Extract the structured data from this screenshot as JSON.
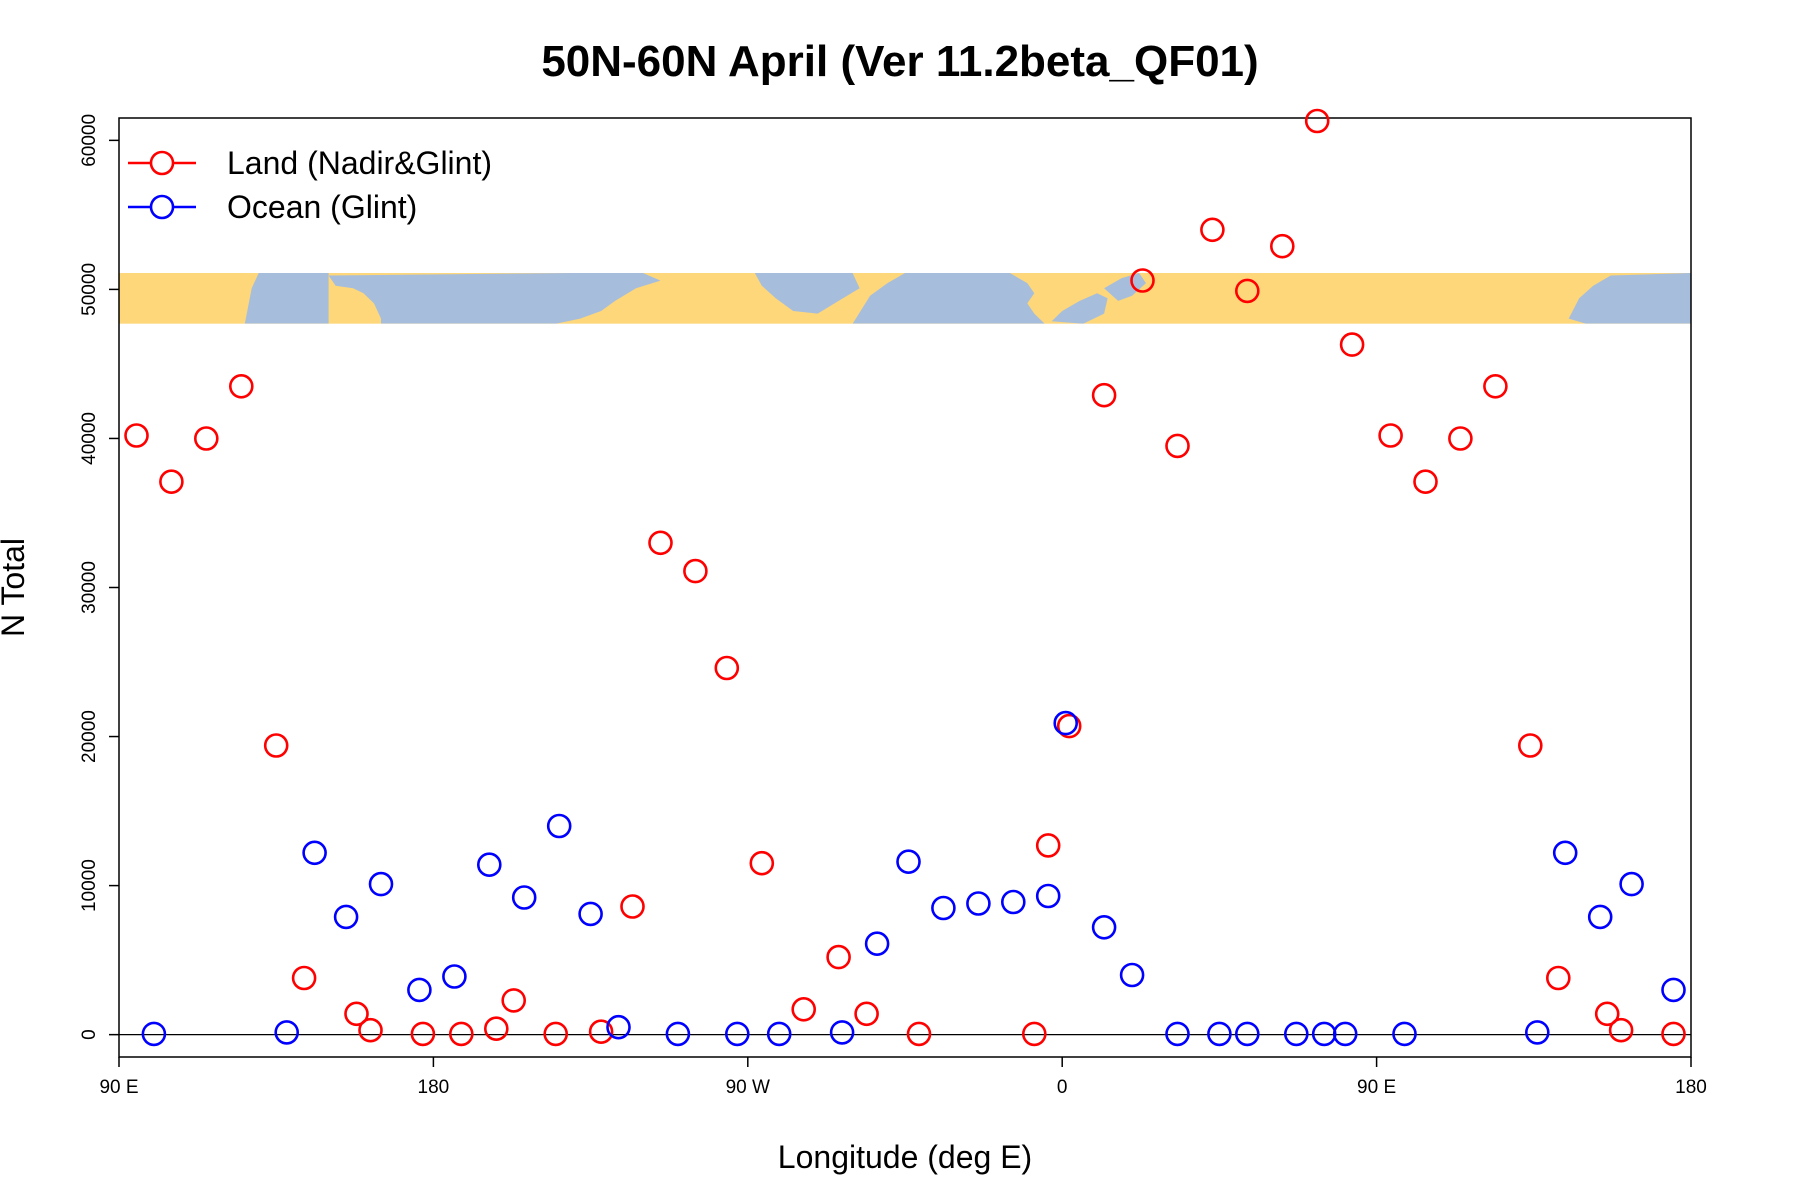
{
  "chart_data": {
    "type": "scatter",
    "title": "50N-60N April (Ver 11.2beta_QF01)",
    "xlabel": "Longitude (deg E)",
    "ylabel": "N Total",
    "xlim": [
      90,
      540
    ],
    "ylim": [
      -1500,
      61500
    ],
    "x_ticks": [
      {
        "value": 90,
        "label": "90 E"
      },
      {
        "value": 180,
        "label": "180"
      },
      {
        "value": 270,
        "label": "90 W"
      },
      {
        "value": 360,
        "label": "0"
      },
      {
        "value": 450,
        "label": "90 E"
      },
      {
        "value": 540,
        "label": "180"
      }
    ],
    "y_ticks": [
      {
        "value": 0,
        "label": "0"
      },
      {
        "value": 10000,
        "label": "10000"
      },
      {
        "value": 20000,
        "label": "20000"
      },
      {
        "value": 30000,
        "label": "30000"
      },
      {
        "value": 40000,
        "label": "40000"
      },
      {
        "value": 50000,
        "label": "50000"
      },
      {
        "value": 60000,
        "label": "60000"
      }
    ],
    "legend_position": "top-left",
    "map_strip": {
      "y_min": 47700,
      "y_max": 51100,
      "land_color": "#fdd77a",
      "ocean_color": "#a7bddc"
    },
    "series": [
      {
        "name": "Land (Nadir&Glint)",
        "color": "#ff0000",
        "points": [
          [
            95,
            40200
          ],
          [
            105,
            37100
          ],
          [
            115,
            40000
          ],
          [
            125,
            43500
          ],
          [
            135,
            19400
          ],
          [
            143,
            3800
          ],
          [
            158,
            1400
          ],
          [
            162,
            300
          ],
          [
            177,
            50
          ],
          [
            188,
            50
          ],
          [
            198,
            400
          ],
          [
            203,
            2300
          ],
          [
            215,
            50
          ],
          [
            228,
            200
          ],
          [
            237,
            8600
          ],
          [
            245,
            33000
          ],
          [
            255,
            31100
          ],
          [
            264,
            24600
          ],
          [
            274,
            11500
          ],
          [
            286,
            1700
          ],
          [
            296,
            5200
          ],
          [
            304,
            1400
          ],
          [
            319,
            50
          ],
          [
            352,
            50
          ],
          [
            356,
            12700
          ],
          [
            362,
            20700
          ],
          [
            372,
            42900
          ],
          [
            383,
            50600
          ],
          [
            393,
            39500
          ],
          [
            403,
            54000
          ],
          [
            413,
            49900
          ],
          [
            423,
            52900
          ],
          [
            433,
            61300
          ],
          [
            443,
            46300
          ],
          [
            454,
            40200
          ],
          [
            464,
            37100
          ],
          [
            474,
            40000
          ],
          [
            484,
            43500
          ],
          [
            494,
            19400
          ],
          [
            502,
            3800
          ],
          [
            516,
            1400
          ],
          [
            520,
            300
          ],
          [
            535,
            50
          ]
        ]
      },
      {
        "name": "Ocean (Glint)",
        "color": "#0000ff",
        "points": [
          [
            100,
            50
          ],
          [
            138,
            150
          ],
          [
            146,
            12200
          ],
          [
            155,
            7900
          ],
          [
            165,
            10100
          ],
          [
            176,
            3000
          ],
          [
            186,
            3900
          ],
          [
            196,
            11400
          ],
          [
            206,
            9200
          ],
          [
            216,
            14000
          ],
          [
            225,
            8100
          ],
          [
            233,
            500
          ],
          [
            250,
            50
          ],
          [
            267,
            50
          ],
          [
            279,
            50
          ],
          [
            297,
            150
          ],
          [
            307,
            6100
          ],
          [
            316,
            11600
          ],
          [
            326,
            8500
          ],
          [
            336,
            8800
          ],
          [
            346,
            8900
          ],
          [
            356,
            9300
          ],
          [
            361,
            20900
          ],
          [
            372,
            7200
          ],
          [
            380,
            4000
          ],
          [
            393,
            50
          ],
          [
            405,
            50
          ],
          [
            413,
            50
          ],
          [
            427,
            50
          ],
          [
            435,
            50
          ],
          [
            441,
            50
          ],
          [
            458,
            50
          ],
          [
            496,
            150
          ],
          [
            504,
            12200
          ],
          [
            514,
            7900
          ],
          [
            523,
            10100
          ],
          [
            535,
            3000
          ]
        ]
      }
    ]
  }
}
